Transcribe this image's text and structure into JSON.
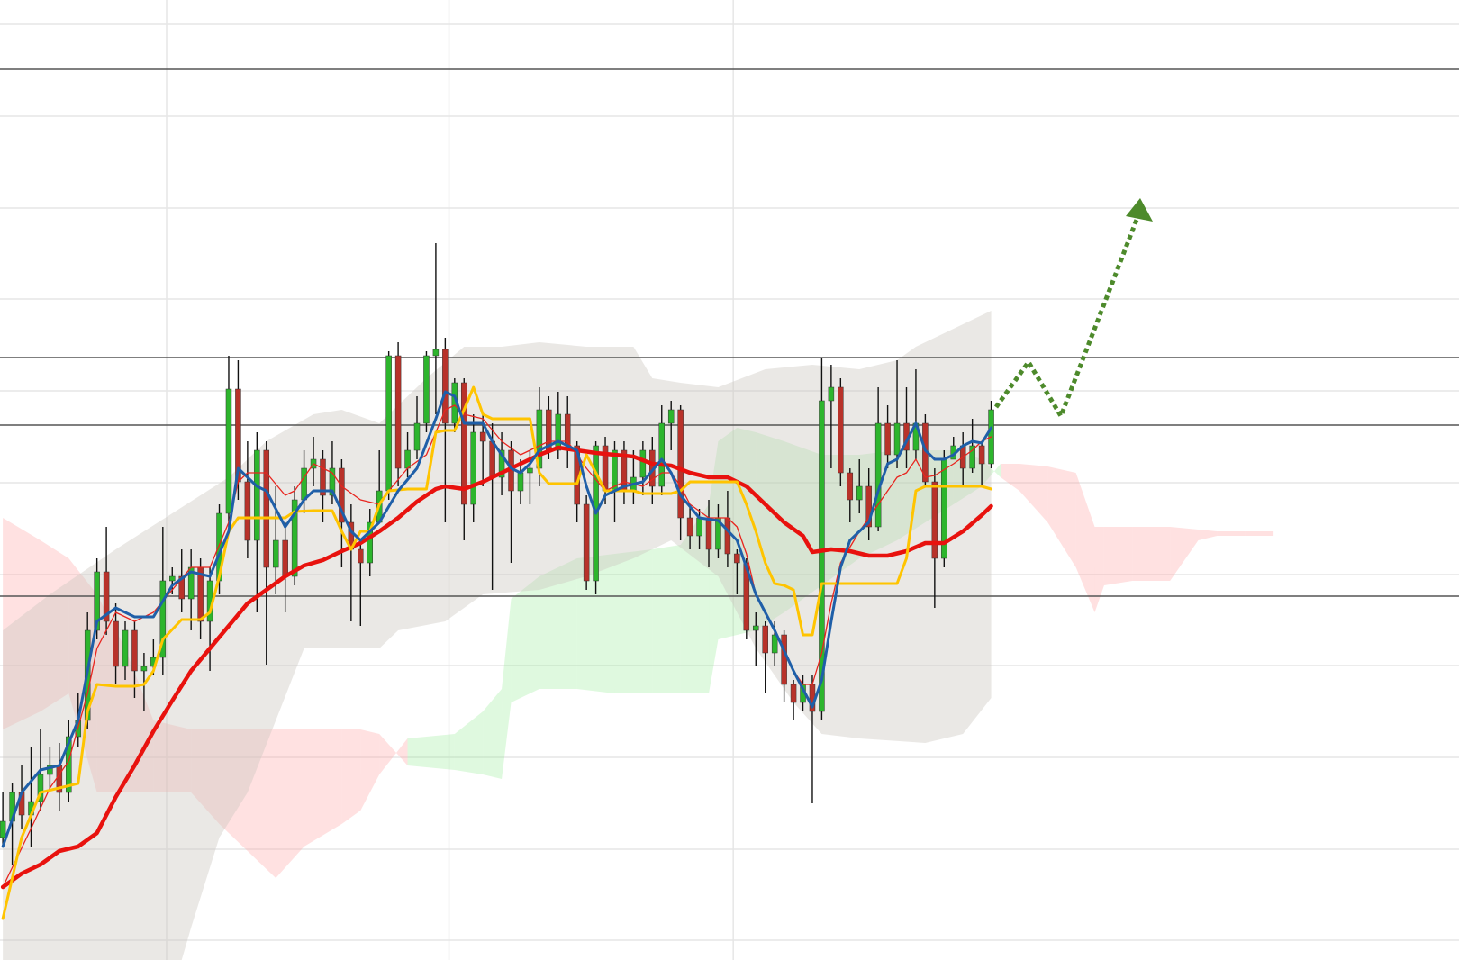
{
  "chart_data": {
    "type": "candlestick",
    "xlim": [
      -0.3,
      154.7
    ],
    "ylim": [
      34,
      1100
    ],
    "xticks": [
      17.4,
      47.4,
      77.6
    ],
    "yticks": [
      1073,
      971,
      869,
      768,
      666,
      564,
      462,
      361,
      259,
      157,
      56
    ],
    "grid": true,
    "grid_color": "#e6e6e6",
    "levels": [
      1023,
      703,
      628,
      438
    ],
    "level_color": "#555555",
    "up_color": "#2db52d",
    "down_color": "#b8322a",
    "wick_color": "#111111",
    "open": [
      170,
      188,
      220,
      195,
      210,
      240,
      250,
      220,
      282,
      300,
      400,
      465,
      410,
      360,
      400,
      355,
      360,
      370,
      455,
      460,
      435,
      470,
      410,
      455,
      530,
      668,
      565,
      500,
      600,
      470,
      500,
      460,
      545,
      580,
      590,
      550,
      580,
      520,
      490,
      475,
      520,
      555,
      705,
      580,
      600,
      630,
      705,
      712,
      630,
      675,
      540,
      620,
      610,
      570,
      600,
      555,
      575,
      580,
      645,
      600,
      640,
      605,
      540,
      455,
      605,
      555,
      600,
      555,
      570,
      600,
      560,
      630,
      645,
      525,
      505,
      525,
      490,
      525,
      485,
      475,
      400,
      405,
      375,
      395,
      340,
      320,
      340,
      310,
      655,
      670,
      575,
      545,
      560,
      515,
      630,
      595,
      630,
      600,
      630,
      565,
      480,
      590,
      605,
      580,
      605,
      585
    ],
    "high": [
      220,
      230,
      250,
      270,
      290,
      270,
      275,
      300,
      330,
      420,
      480,
      515,
      430,
      410,
      410,
      375,
      390,
      515,
      470,
      490,
      490,
      480,
      470,
      540,
      705,
      700,
      610,
      620,
      610,
      560,
      520,
      560,
      600,
      615,
      600,
      610,
      590,
      540,
      500,
      535,
      600,
      710,
      720,
      620,
      660,
      710,
      830,
      725,
      680,
      680,
      640,
      640,
      630,
      620,
      610,
      590,
      600,
      670,
      660,
      665,
      660,
      610,
      550,
      610,
      615,
      610,
      610,
      600,
      610,
      615,
      650,
      655,
      650,
      540,
      535,
      545,
      540,
      555,
      490,
      480,
      420,
      410,
      410,
      400,
      345,
      350,
      350,
      702,
      695,
      680,
      580,
      590,
      580,
      670,
      650,
      700,
      670,
      690,
      640,
      580,
      600,
      615,
      620,
      635,
      610,
      655
    ],
    "low": [
      160,
      140,
      180,
      160,
      200,
      225,
      200,
      210,
      270,
      290,
      390,
      395,
      340,
      345,
      325,
      310,
      350,
      350,
      440,
      420,
      400,
      390,
      355,
      440,
      515,
      545,
      480,
      420,
      362,
      440,
      420,
      450,
      530,
      560,
      520,
      540,
      470,
      410,
      405,
      460,
      530,
      545,
      560,
      570,
      590,
      620,
      640,
      520,
      620,
      500,
      520,
      560,
      445,
      550,
      475,
      540,
      540,
      560,
      590,
      590,
      580,
      520,
      445,
      440,
      540,
      520,
      540,
      540,
      550,
      540,
      550,
      600,
      500,
      490,
      490,
      470,
      480,
      470,
      440,
      390,
      360,
      330,
      360,
      320,
      300,
      310,
      208,
      300,
      580,
      560,
      520,
      530,
      500,
      510,
      580,
      580,
      580,
      590,
      560,
      425,
      470,
      590,
      560,
      575,
      560,
      580
    ],
    "close": [
      188,
      220,
      195,
      210,
      240,
      250,
      220,
      282,
      300,
      400,
      465,
      410,
      360,
      400,
      355,
      360,
      370,
      455,
      460,
      435,
      470,
      410,
      455,
      530,
      668,
      565,
      500,
      600,
      470,
      500,
      460,
      545,
      580,
      590,
      550,
      580,
      520,
      490,
      475,
      520,
      555,
      705,
      580,
      600,
      630,
      705,
      712,
      630,
      675,
      540,
      620,
      610,
      570,
      600,
      555,
      575,
      580,
      645,
      600,
      640,
      605,
      540,
      455,
      605,
      555,
      600,
      555,
      570,
      600,
      560,
      630,
      645,
      525,
      505,
      525,
      490,
      525,
      485,
      475,
      400,
      405,
      375,
      395,
      340,
      320,
      340,
      310,
      655,
      670,
      575,
      545,
      560,
      515,
      630,
      595,
      630,
      600,
      630,
      565,
      480,
      590,
      605,
      580,
      605,
      585,
      645
    ],
    "band": {
      "color": "rgba(205,201,193,0.42)",
      "x_upper": [
        0,
        5,
        12,
        18,
        24,
        28,
        33,
        36,
        40,
        45,
        49,
        53,
        57,
        62,
        67,
        69,
        72,
        76,
        81,
        86,
        91,
        95,
        97,
        101,
        105
      ],
      "upper": [
        400,
        440,
        490,
        530,
        570,
        610,
        640,
        645,
        630,
        680,
        715,
        715,
        720,
        715,
        715,
        680,
        675,
        670,
        690,
        695,
        690,
        700,
        715,
        735,
        755
      ],
      "x_lower": [
        0,
        19,
        20,
        23,
        26,
        29,
        32,
        40,
        42,
        47,
        51,
        57,
        62,
        67,
        71,
        76,
        80,
        84,
        87,
        91,
        98,
        102,
        105
      ],
      "lower": [
        34,
        34,
        70,
        170,
        220,
        300,
        380,
        380,
        400,
        410,
        440,
        445,
        460,
        480,
        500,
        460,
        380,
        320,
        285,
        280,
        275,
        285,
        325
      ]
    },
    "cloud": {
      "up_color": "rgba(140,235,140,0.28)",
      "down_color": "rgba(255,165,165,0.33)",
      "x": [
        0,
        4,
        7,
        10,
        13,
        16,
        20,
        23,
        26,
        29,
        32,
        36,
        38,
        40,
        43,
        48,
        51,
        53,
        54,
        57,
        61,
        65,
        69,
        72,
        75,
        76,
        78,
        80,
        83,
        87,
        91,
        95,
        101,
        104,
        106,
        108,
        111,
        114,
        116,
        117,
        120,
        124,
        127,
        129,
        132,
        135
      ],
      "span_a": [
        290,
        310,
        330,
        220,
        220,
        220,
        220,
        185,
        155,
        125,
        160,
        185,
        200,
        240,
        280,
        285,
        310,
        335,
        435,
        460,
        480,
        485,
        490,
        495,
        540,
        610,
        625,
        620,
        610,
        595,
        595,
        600,
        600,
        590,
        570,
        555,
        520,
        470,
        420,
        450,
        455,
        455,
        500,
        505,
        505,
        505
      ],
      "span_b": [
        525,
        500,
        480,
        440,
        380,
        300,
        290,
        290,
        290,
        290,
        290,
        290,
        290,
        285,
        250,
        245,
        240,
        235,
        320,
        335,
        335,
        330,
        330,
        330,
        330,
        390,
        395,
        400,
        420,
        450,
        480,
        500,
        540,
        560,
        585,
        585,
        582,
        575,
        515,
        515,
        515,
        515,
        512,
        510,
        510,
        510
      ]
    },
    "series": [
      {
        "color": "#e8241e",
        "width": 1.3,
        "x": [
          0,
          3,
          5,
          7,
          9,
          10,
          12,
          14,
          16,
          18,
          20,
          22,
          24,
          25,
          26,
          28,
          30,
          31,
          33,
          35,
          36,
          38,
          40,
          41,
          43,
          45,
          47,
          48,
          49,
          51,
          53,
          55,
          56,
          58,
          60,
          61,
          62,
          64,
          66,
          68,
          70,
          71,
          72,
          73,
          75,
          77,
          78,
          79,
          80,
          82,
          84,
          85,
          86,
          87,
          88,
          89,
          91,
          93,
          95,
          96,
          97,
          98,
          99,
          101,
          103,
          104,
          105
        ],
        "values": [
          115,
          180,
          225,
          255,
          330,
          380,
          420,
          410,
          420,
          445,
          470,
          470,
          520,
          565,
          575,
          575,
          550,
          555,
          585,
          575,
          560,
          545,
          540,
          555,
          580,
          595,
          645,
          650,
          640,
          635,
          610,
          595,
          600,
          610,
          610,
          595,
          580,
          555,
          565,
          560,
          575,
          575,
          560,
          540,
          525,
          525,
          515,
          485,
          440,
          400,
          355,
          340,
          340,
          375,
          430,
          475,
          510,
          540,
          570,
          575,
          590,
          570,
          572,
          585,
          600,
          610,
          615
        ]
      },
      {
        "color": "#e8120e",
        "width": 4.5,
        "x": [
          0,
          2,
          4,
          6,
          8,
          10,
          12,
          14,
          16,
          18,
          20,
          22,
          24,
          26,
          28,
          30,
          32,
          34,
          36,
          38,
          40,
          42,
          44,
          46,
          47,
          49,
          51,
          53,
          55,
          57,
          59,
          61,
          63,
          65,
          67,
          69,
          71,
          73,
          75,
          77,
          79,
          81,
          83,
          85,
          86,
          88,
          90,
          92,
          94,
          96,
          98,
          100,
          102,
          104,
          105
        ],
        "values": [
          115,
          130,
          140,
          155,
          160,
          175,
          215,
          250,
          288,
          322,
          355,
          380,
          405,
          430,
          445,
          460,
          472,
          478,
          488,
          497,
          510,
          525,
          543,
          557,
          560,
          557,
          565,
          575,
          585,
          595,
          603,
          600,
          597,
          595,
          593,
          585,
          583,
          575,
          570,
          570,
          560,
          540,
          520,
          505,
          487,
          490,
          488,
          483,
          483,
          488,
          497,
          497,
          510,
          528,
          538
        ]
      },
      {
        "color": "#ffc400",
        "width": 3,
        "x": [
          0,
          2,
          4,
          6,
          8,
          9,
          10,
          12,
          14,
          15,
          16,
          17,
          19,
          21,
          22,
          23,
          24,
          25,
          28,
          30,
          31,
          33,
          35,
          36,
          37,
          38,
          39,
          40,
          41,
          43,
          45,
          46,
          47,
          48,
          49,
          50,
          51,
          52,
          55,
          56,
          57,
          58,
          60,
          61,
          62,
          64,
          66,
          67,
          68,
          70,
          71,
          72,
          73,
          75,
          76,
          77,
          78,
          79,
          80,
          81,
          82,
          83,
          84,
          85,
          86,
          87,
          90,
          92,
          94,
          95,
          96,
          97,
          98,
          100,
          102,
          104,
          105
        ],
        "values": [
          80,
          170,
          220,
          225,
          230,
          310,
          340,
          338,
          338,
          340,
          355,
          390,
          412,
          412,
          420,
          460,
          510,
          525,
          525,
          525,
          532,
          533,
          533,
          510,
          490,
          510,
          510,
          540,
          555,
          557,
          557,
          620,
          622,
          622,
          645,
          670,
          640,
          635,
          635,
          635,
          575,
          563,
          563,
          563,
          595,
          555,
          555,
          555,
          552,
          552,
          552,
          555,
          565,
          565,
          565,
          565,
          565,
          540,
          510,
          475,
          452,
          450,
          445,
          395,
          395,
          452,
          452,
          452,
          452,
          452,
          480,
          555,
          560,
          560,
          560,
          560,
          557
        ]
      },
      {
        "color": "#1f5fa8",
        "width": 3,
        "x": [
          0,
          2,
          4,
          6,
          8,
          10,
          12,
          14,
          16,
          18,
          20,
          22,
          24,
          25,
          27,
          28,
          30,
          32,
          33,
          35,
          37,
          38,
          40,
          42,
          44,
          46,
          47,
          48,
          49,
          50,
          51,
          52,
          54,
          55,
          56,
          57,
          59,
          61,
          62,
          63,
          64,
          66,
          68,
          70,
          71,
          72,
          74,
          76,
          78,
          79,
          80,
          82,
          84,
          85,
          86,
          87,
          88,
          89,
          90,
          92,
          93,
          94,
          95,
          96,
          97,
          98,
          99,
          100,
          101,
          102,
          103,
          104,
          105
        ],
        "values": [
          160,
          220,
          245,
          250,
          300,
          410,
          425,
          415,
          415,
          450,
          465,
          460,
          510,
          580,
          560,
          555,
          515,
          545,
          555,
          555,
          510,
          500,
          520,
          555,
          580,
          635,
          665,
          660,
          630,
          630,
          630,
          610,
          580,
          575,
          585,
          600,
          610,
          600,
          560,
          530,
          550,
          560,
          565,
          590,
          575,
          550,
          525,
          522,
          500,
          470,
          440,
          400,
          355,
          335,
          315,
          345,
          410,
          470,
          500,
          520,
          555,
          585,
          590,
          610,
          630,
          600,
          590,
          590,
          595,
          605,
          610,
          608,
          625
        ]
      }
    ]
  }
}
